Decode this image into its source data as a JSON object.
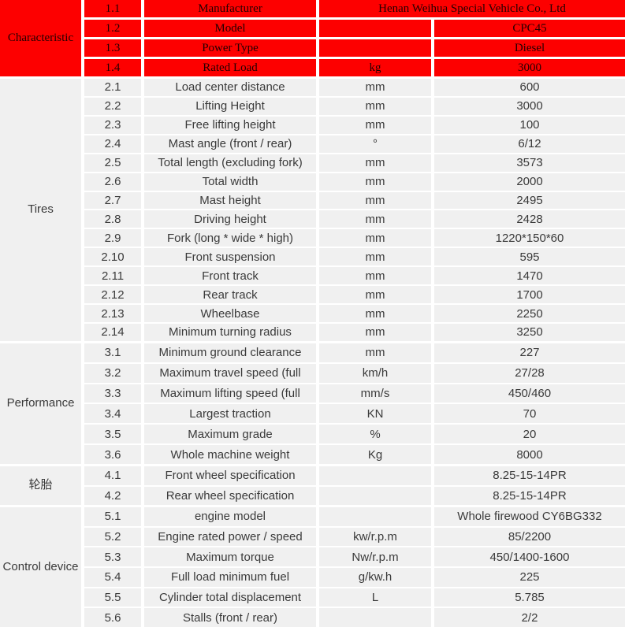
{
  "table": {
    "colors": {
      "header_red": "#fd0000",
      "cell_background": "#f0f0f0",
      "gridline": "#ffffff",
      "body_text": "#3a3a3a",
      "header_text": "#240000"
    },
    "sections": [
      {
        "label": "Characteristic",
        "theme": "red",
        "rows": [
          {
            "no": "1.1",
            "name": "Manufacturer",
            "merged": true,
            "value": "Henan Weihua Special Vehicle Co., Ltd"
          },
          {
            "no": "1.2",
            "name": "Model",
            "unit": "",
            "value": "CPC45"
          },
          {
            "no": "1.3",
            "name": "Power Type",
            "unit": "",
            "value": "Diesel"
          },
          {
            "no": "1.4",
            "name": "Rated Load",
            "unit": "kg",
            "value": "3000"
          }
        ]
      },
      {
        "label": "Tires",
        "theme": "plain",
        "rows": [
          {
            "no": "2.1",
            "name": "Load center distance",
            "unit": "mm",
            "value": "600"
          },
          {
            "no": "2.2",
            "name": "Lifting Height",
            "unit": "mm",
            "value": "3000"
          },
          {
            "no": "2.3",
            "name": "Free lifting height",
            "unit": "mm",
            "value": "100"
          },
          {
            "no": "2.4",
            "name": "Mast angle (front / rear)",
            "unit": "°",
            "value": "6/12"
          },
          {
            "no": "2.5",
            "name": "Total length (excluding fork)",
            "unit": "mm",
            "value": "3573"
          },
          {
            "no": "2.6",
            "name": "Total width",
            "unit": "mm",
            "value": "2000"
          },
          {
            "no": "2.7",
            "name": "Mast height",
            "unit": "mm",
            "value": "2495"
          },
          {
            "no": "2.8",
            "name": "Driving height",
            "unit": "mm",
            "value": "2428"
          },
          {
            "no": "2.9",
            "name": "Fork (long * wide * high)",
            "unit": "mm",
            "value": "1220*150*60"
          },
          {
            "no": "2.10",
            "name": "Front suspension",
            "unit": "mm",
            "value": "595"
          },
          {
            "no": "2.11",
            "name": "Front track",
            "unit": "mm",
            "value": "1470"
          },
          {
            "no": "2.12",
            "name": "Rear track",
            "unit": "mm",
            "value": "1700"
          },
          {
            "no": "2.13",
            "name": "Wheelbase",
            "unit": "mm",
            "value": "2250"
          },
          {
            "no": "2.14",
            "name": "Minimum turning radius",
            "unit": "mm",
            "value": "3250"
          }
        ]
      },
      {
        "label": "Performance",
        "theme": "plain",
        "rows": [
          {
            "no": "3.1",
            "name": "Minimum ground clearance",
            "unit": "mm",
            "value": "227"
          },
          {
            "no": "3.2",
            "name": "Maximum travel speed (full",
            "unit": "km/h",
            "value": "27/28"
          },
          {
            "no": "3.3",
            "name": "Maximum lifting speed (full",
            "unit": "mm/s",
            "value": "450/460"
          },
          {
            "no": "3.4",
            "name": "Largest traction",
            "unit": "KN",
            "value": "70"
          },
          {
            "no": "3.5",
            "name": "Maximum grade",
            "unit": "%",
            "value": "20"
          },
          {
            "no": "3.6",
            "name": "Whole machine weight",
            "unit": "Kg",
            "value": "8000"
          }
        ]
      },
      {
        "label": "轮胎",
        "theme": "plain",
        "rows": [
          {
            "no": "4.1",
            "name": "Front wheel specification",
            "unit": "",
            "value": "8.25-15-14PR"
          },
          {
            "no": "4.2",
            "name": "Rear wheel specification",
            "unit": "",
            "value": "8.25-15-14PR"
          }
        ]
      },
      {
        "label": "Control device",
        "theme": "plain",
        "rows": [
          {
            "no": "5.1",
            "name": "engine model",
            "unit": "",
            "value": "Whole firewood CY6BG332"
          },
          {
            "no": "5.2",
            "name": "Engine rated power / speed",
            "unit": "kw/r.p.m",
            "value": "85/2200"
          },
          {
            "no": "5.3",
            "name": "Maximum torque",
            "unit": "Nw/r.p.m",
            "value": "450/1400-1600"
          },
          {
            "no": "5.4",
            "name": "Full load minimum fuel",
            "unit": "g/kw.h",
            "value": "225"
          },
          {
            "no": "5.5",
            "name": "Cylinder total displacement",
            "unit": "L",
            "value": "5.785"
          },
          {
            "no": "5.6",
            "name": "Stalls (front / rear)",
            "unit": "",
            "value": "2/2"
          }
        ]
      }
    ]
  }
}
